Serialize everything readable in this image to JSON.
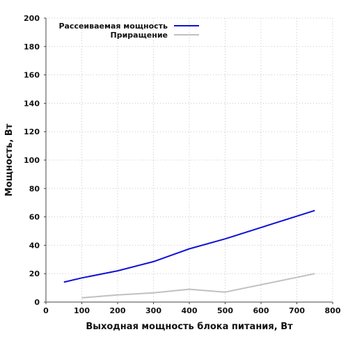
{
  "chart_data": {
    "type": "line",
    "title": "",
    "xlabel": "Выходная мощность блока питания, Вт",
    "ylabel": "Мощность, Вт",
    "xlim": [
      0,
      800
    ],
    "ylim": [
      0,
      200
    ],
    "xticks": [
      0,
      100,
      200,
      300,
      400,
      500,
      600,
      700,
      800
    ],
    "yticks": [
      0,
      20,
      40,
      60,
      80,
      100,
      120,
      140,
      160,
      180,
      200
    ],
    "grid": true,
    "legend_position": "top-left",
    "series": [
      {
        "name": "Рассеиваемая мощность",
        "color": "#1010d8",
        "points": [
          [
            50,
            14
          ],
          [
            100,
            17
          ],
          [
            200,
            22
          ],
          [
            300,
            28.5
          ],
          [
            400,
            37.5
          ],
          [
            500,
            44.5
          ],
          [
            750,
            64.5
          ]
        ]
      },
      {
        "name": "Приращение",
        "color": "#c0c0c0",
        "points": [
          [
            100,
            3
          ],
          [
            200,
            5
          ],
          [
            300,
            6.5
          ],
          [
            400,
            9
          ],
          [
            500,
            7
          ],
          [
            750,
            20
          ]
        ]
      }
    ]
  }
}
